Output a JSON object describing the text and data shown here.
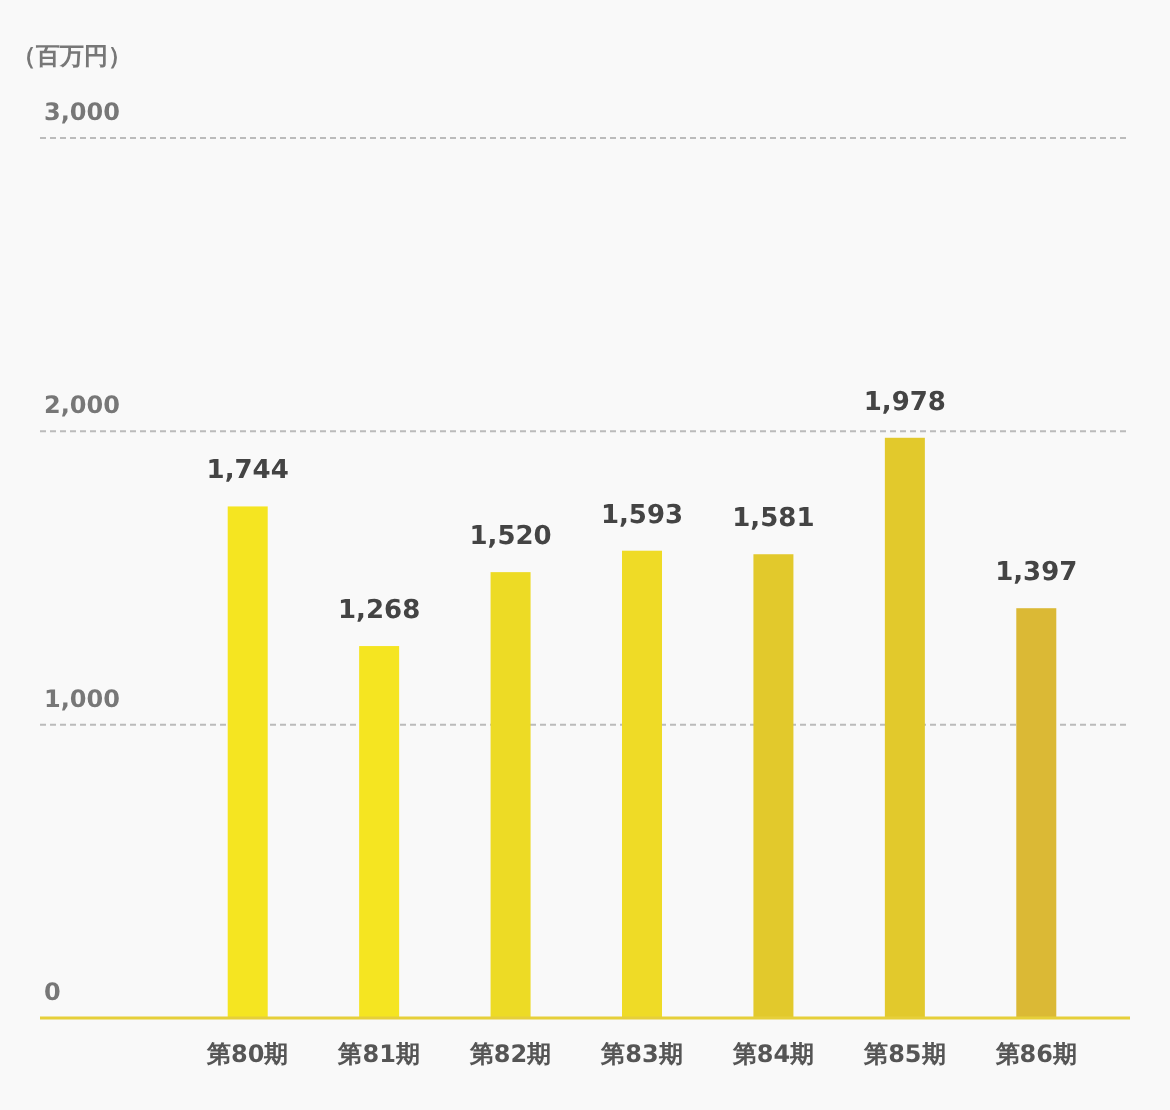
{
  "chart_data": {
    "type": "bar",
    "ylabel": "（百万円）",
    "categories": [
      "第80期",
      "第81期",
      "第82期",
      "第83期",
      "第84期",
      "第85期",
      "第86期"
    ],
    "values": [
      1744,
      1268,
      1520,
      1593,
      1581,
      1978,
      1397
    ],
    "colors": [
      "#f5e521",
      "#f5e521",
      "#eddb25",
      "#efdb26",
      "#e2c92c",
      "#e2c92c",
      "#dbb935"
    ],
    "ylim": [
      0,
      3000
    ],
    "yticks": [
      {
        "value": 0,
        "label": "0"
      },
      {
        "value": 1000,
        "label": "1,000"
      },
      {
        "value": 2000,
        "label": "2,000"
      },
      {
        "value": 3000,
        "label": "3,000"
      }
    ],
    "value_labels": [
      "1,744",
      "1,268",
      "1,520",
      "1,593",
      "1,581",
      "1,978",
      "1,397"
    ],
    "grid": "y"
  }
}
